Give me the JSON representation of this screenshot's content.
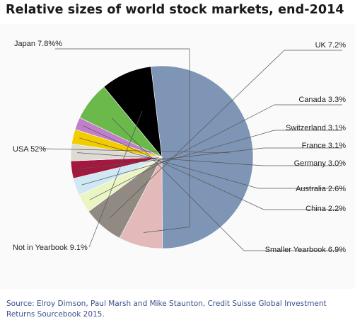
{
  "page": {
    "title": "Relative sizes of world stock markets, end-2014",
    "source": "Source: Elroy Dimson, Paul Marsh and Mike Staunton, Credit Suisse Global Investment Returns Sourcebook 2015."
  },
  "chart_data": {
    "type": "pie",
    "title": "Relative sizes of world stock markets, end-2014",
    "slices": [
      {
        "label": "USA 52%",
        "value": 52.0,
        "color": "#7f95b5"
      },
      {
        "label": "Japan 7.8%%",
        "value": 7.8,
        "color": "#e3b9b9"
      },
      {
        "label": "UK 7.2%",
        "value": 7.2,
        "color": "#918a83"
      },
      {
        "label": "Canada 3.3%",
        "value": 3.3,
        "color": "#eaf5c3"
      },
      {
        "label": "Switzerland 3.1%",
        "value": 3.1,
        "color": "#cfe8f3"
      },
      {
        "label": "France 3.1%",
        "value": 3.1,
        "color": "#a2183f"
      },
      {
        "label": "Germany 3.0%",
        "value": 3.0,
        "color": "#dedbd5"
      },
      {
        "label": "Australia 2.6%",
        "value": 2.6,
        "color": "#f3cc00"
      },
      {
        "label": "China 2.2%",
        "value": 2.2,
        "color": "#c07fc8"
      },
      {
        "label": "Smaller Yearbook 6.9%",
        "value": 6.9,
        "color": "#6ab94a"
      },
      {
        "label": "Not in Yearbook 9.1%",
        "value": 9.1,
        "color": "#000000"
      }
    ]
  }
}
